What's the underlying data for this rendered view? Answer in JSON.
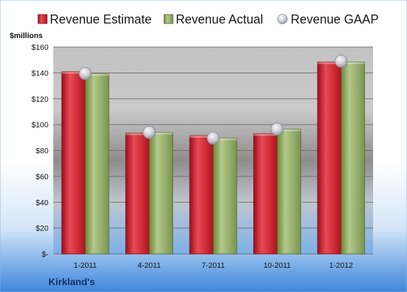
{
  "company": "Kirkland's",
  "units_label": "$millions",
  "chart_data": {
    "type": "bar",
    "title": "",
    "xlabel": "",
    "ylabel": "$millions",
    "categories": [
      "1-2011",
      "4-2011",
      "7-2011",
      "10-2011",
      "1-2012"
    ],
    "series": [
      {
        "name": "Revenue Estimate",
        "values": [
          141,
          93.5,
          91.5,
          93,
          148.5
        ],
        "color": "#c8102e",
        "kind": "bar"
      },
      {
        "name": "Revenue Actual",
        "values": [
          139.5,
          94,
          89.5,
          96.5,
          148.5
        ],
        "color": "#8ba45a",
        "kind": "bar"
      },
      {
        "name": "Revenue GAAP",
        "values": [
          139.5,
          94,
          89.5,
          96.5,
          149
        ],
        "color": "#c9ccd6",
        "kind": "marker"
      }
    ],
    "ylim": [
      0,
      160
    ],
    "yticks": [
      0,
      20,
      40,
      60,
      80,
      100,
      120,
      140,
      160
    ],
    "ytick_labels": [
      "$-",
      "$20",
      "$40",
      "$60",
      "$80",
      "$100",
      "$120",
      "$140",
      "$160"
    ],
    "grid": true,
    "legend_position": "top"
  }
}
